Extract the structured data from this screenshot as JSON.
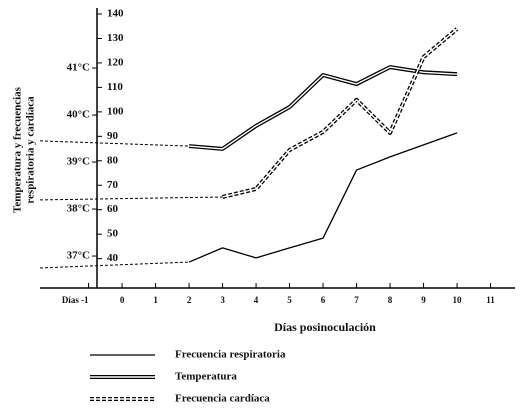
{
  "chart_data": {
    "type": "line",
    "y_label": [
      "Temperatura y frecuencias",
      "respiratoria y cardíaca"
    ],
    "x_label": "Días posinoculación",
    "xlim": [
      -2.45,
      11.73
    ],
    "xticks": [
      {
        "value": -1,
        "label": "Días -1"
      },
      0,
      1,
      2,
      3,
      4,
      5,
      6,
      7,
      8,
      9,
      10,
      11
    ],
    "ylim": [
      28,
      140
    ],
    "yticks": [
      40,
      50,
      60,
      70,
      80,
      90,
      100,
      110,
      120,
      130,
      140
    ],
    "y2lim": [
      36.32,
      42.15
    ],
    "y2ticks": [
      {
        "value": 37,
        "label": "37°C"
      },
      {
        "value": 38,
        "label": "38°C"
      },
      {
        "value": 39,
        "label": "39°C"
      },
      {
        "value": 40,
        "label": "40°C"
      },
      {
        "value": 41,
        "label": "41°C"
      }
    ],
    "series": [
      {
        "name": "Frecuencia respiratoria",
        "color": "#000",
        "style": "solid",
        "x": [
          2,
          3,
          4,
          5,
          6,
          7,
          8,
          9,
          10
        ],
        "values": [
          38.6,
          44.4,
          40.3,
          44.4,
          48.4,
          76.2,
          81.6,
          86.5,
          91.4
        ]
      },
      {
        "name": "Temperatura",
        "color": "#000",
        "style": "double",
        "axis": "y2",
        "x": [
          2,
          3,
          4,
          5,
          6,
          7,
          8,
          9,
          10
        ],
        "values": [
          39.34,
          39.28,
          39.77,
          40.17,
          40.85,
          40.66,
          41.02,
          40.91,
          40.87
        ]
      },
      {
        "name": "Frecuencia cardíaca",
        "color": "#000",
        "style": "double-dashed",
        "x": [
          3,
          4,
          5,
          6,
          7,
          8,
          9,
          10
        ],
        "values": [
          65.2,
          68.5,
          84.4,
          91.8,
          104.9,
          91.4,
          122.4,
          133.9
        ]
      },
      {
        "color": "#000",
        "style": "dashed",
        "x": [
          -2.45,
          2
        ],
        "values": [
          36.2,
          38.6
        ]
      },
      {
        "color": "#000",
        "style": "dashed",
        "axis": "y2",
        "x": [
          -2.45,
          2
        ],
        "values": [
          39.45,
          39.34
        ]
      },
      {
        "color": "#000",
        "style": "dashed",
        "x": [
          -2.45,
          3
        ],
        "values": [
          64,
          65.2
        ]
      }
    ]
  }
}
